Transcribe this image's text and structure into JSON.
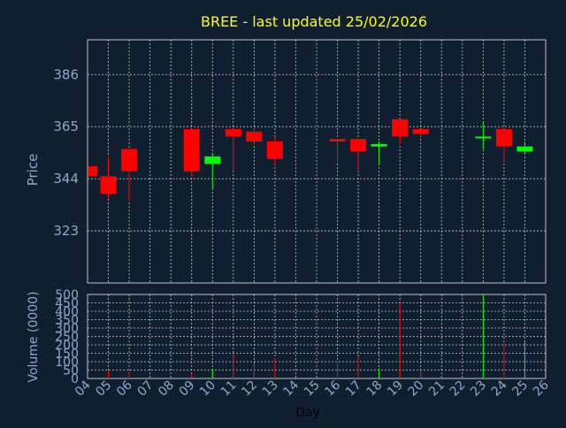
{
  "chart_data": {
    "type": "candlestick",
    "title": "BREE - last updated 25/02/2026",
    "xlabel": "Day",
    "price_panel": {
      "ylabel": "Price",
      "ylim": [
        302,
        400
      ],
      "yticks": [
        323,
        344,
        365,
        386
      ],
      "up_color": "#00ff00",
      "down_color": "#ff0000"
    },
    "volume_panel": {
      "ylabel": "Volume (0000)",
      "ylim": [
        0,
        500
      ],
      "yticks": [
        0,
        50,
        100,
        150,
        200,
        250,
        300,
        350,
        400,
        450,
        500
      ]
    },
    "x_ticks": [
      "04",
      "05",
      "06",
      "07",
      "08",
      "09",
      "10",
      "11",
      "12",
      "13",
      "14",
      "15",
      "16",
      "17",
      "18",
      "19",
      "20",
      "21",
      "22",
      "23",
      "24",
      "25",
      "26"
    ],
    "candles": [
      {
        "day": 4.1,
        "open": 349,
        "high": 349,
        "low": 345,
        "close": 345,
        "volume": 0
      },
      {
        "day": 5.0,
        "open": 345,
        "high": 353,
        "low": 336,
        "close": 338,
        "volume": 50
      },
      {
        "day": 6.0,
        "open": 356,
        "high": 356,
        "low": 335,
        "close": 347,
        "volume": 40
      },
      {
        "day": 9.0,
        "open": 364,
        "high": 364,
        "low": 345,
        "close": 347,
        "volume": 30
      },
      {
        "day": 10.0,
        "open": 350,
        "high": 354,
        "low": 340,
        "close": 353,
        "volume": 60
      },
      {
        "day": 11.0,
        "open": 364,
        "high": 364,
        "low": 347,
        "close": 361,
        "volume": 140
      },
      {
        "day": 12.0,
        "open": 363,
        "high": 365,
        "low": 358,
        "close": 359,
        "volume": 90
      },
      {
        "day": 13.0,
        "open": 359,
        "high": 361,
        "low": 349,
        "close": 352,
        "volume": 120
      },
      {
        "day": 16.0,
        "open": 360,
        "high": 360,
        "low": 350,
        "close": 359,
        "volume": 100
      },
      {
        "day": 17.0,
        "open": 360,
        "high": 360,
        "low": 347,
        "close": 355,
        "volume": 130
      },
      {
        "day": 18.0,
        "open": 357,
        "high": 359,
        "low": 350,
        "close": 358,
        "volume": 60
      },
      {
        "day": 19.0,
        "open": 368,
        "high": 368,
        "low": 358,
        "close": 361,
        "volume": 450
      },
      {
        "day": 20.0,
        "open": 364,
        "high": 364,
        "low": 361,
        "close": 362,
        "volume": 50
      },
      {
        "day": 23.0,
        "open": 361,
        "high": 367,
        "low": 356,
        "close": 361,
        "volume": 500
      },
      {
        "day": 24.0,
        "open": 364,
        "high": 364,
        "low": 351,
        "close": 357,
        "volume": 220
      },
      {
        "day": 25.0,
        "open": 355,
        "high": 359,
        "low": 354,
        "close": 357,
        "volume": 220
      }
    ]
  }
}
